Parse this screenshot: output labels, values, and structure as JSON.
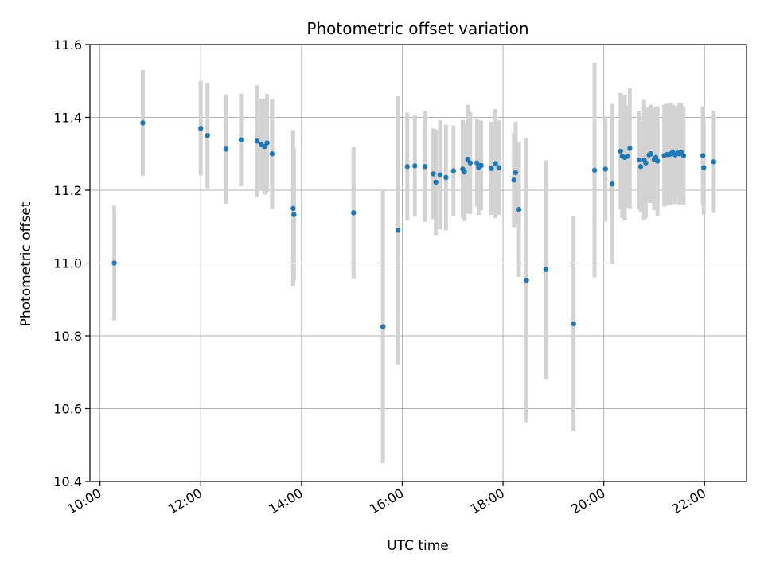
{
  "chart_data": {
    "type": "scatter",
    "title": "Photometric offset variation",
    "xlabel": "UTC time",
    "ylabel": "Photometric offset",
    "xlim": [
      "09:48",
      "22:50"
    ],
    "ylim": [
      10.4,
      11.6
    ],
    "x_ticks": [
      "10:00",
      "12:00",
      "14:00",
      "16:00",
      "18:00",
      "20:00",
      "22:00"
    ],
    "y_ticks": [
      "10.4",
      "10.6",
      "10.8",
      "11.0",
      "11.2",
      "11.4",
      "11.6"
    ],
    "grid": true,
    "colors": {
      "point": "#1f77b4",
      "errorbar": "#d3d3d3",
      "grid": "#b0b0b0"
    },
    "series": [
      {
        "x": [
          "10:17",
          "10:51",
          "12:00",
          "12:08",
          "12:30",
          "12:48",
          "13:07",
          "13:12",
          "13:16",
          "13:19",
          "13:25",
          "13:50",
          "13:51",
          "15:02",
          "15:37",
          "15:55",
          "16:06",
          "16:15",
          "16:27",
          "16:37",
          "16:40",
          "16:45",
          "16:52",
          "17:01",
          "17:12",
          "17:14",
          "17:18",
          "17:21",
          "17:29",
          "17:31",
          "17:34",
          "17:46",
          "17:51",
          "17:55",
          "18:13",
          "18:15",
          "18:19",
          "18:28",
          "18:51",
          "19:24",
          "19:49",
          "20:02",
          "20:10",
          "20:20",
          "20:22",
          "20:25",
          "20:28",
          "20:31",
          "20:42",
          "20:44",
          "20:48",
          "20:50",
          "20:54",
          "20:56",
          "21:00",
          "21:02",
          "21:04",
          "21:12",
          "21:15",
          "21:18",
          "21:20",
          "21:22",
          "21:25",
          "21:28",
          "21:30",
          "21:32",
          "21:35",
          "21:58",
          "21:59",
          "22:11"
        ],
        "y": [
          11.0,
          11.385,
          11.37,
          11.35,
          11.313,
          11.338,
          11.335,
          11.325,
          11.32,
          11.33,
          11.3,
          11.15,
          11.133,
          11.138,
          10.825,
          11.09,
          11.265,
          11.267,
          11.265,
          11.245,
          11.222,
          11.242,
          11.235,
          11.253,
          11.258,
          11.25,
          11.285,
          11.275,
          11.275,
          11.262,
          11.268,
          11.26,
          11.273,
          11.262,
          11.228,
          11.248,
          11.147,
          10.953,
          10.982,
          10.833,
          11.255,
          11.258,
          11.217,
          11.307,
          11.293,
          11.29,
          11.293,
          11.315,
          11.283,
          11.265,
          11.283,
          11.275,
          11.297,
          11.3,
          11.285,
          11.29,
          11.28,
          11.295,
          11.298,
          11.298,
          11.3,
          11.305,
          11.297,
          11.302,
          11.3,
          11.305,
          11.295,
          11.295,
          11.262,
          11.278
        ],
        "yerr": [
          0.158,
          0.145,
          0.13,
          0.145,
          0.15,
          0.127,
          0.153,
          0.127,
          0.132,
          0.135,
          0.15,
          0.215,
          0.182,
          0.18,
          0.375,
          0.37,
          0.148,
          0.14,
          0.152,
          0.125,
          0.145,
          0.15,
          0.145,
          0.125,
          0.135,
          0.135,
          0.15,
          0.14,
          0.12,
          0.13,
          0.123,
          0.128,
          0.15,
          0.13,
          0.13,
          0.14,
          0.185,
          0.39,
          0.3,
          0.295,
          0.295,
          0.145,
          0.22,
          0.16,
          0.17,
          0.173,
          0.14,
          0.165,
          0.135,
          0.125,
          0.165,
          0.152,
          0.13,
          0.135,
          0.14,
          0.14,
          0.15,
          0.14,
          0.14,
          0.135,
          0.14,
          0.13,
          0.135,
          0.125,
          0.14,
          0.135,
          0.135,
          0.135,
          0.13,
          0.14
        ]
      }
    ]
  }
}
